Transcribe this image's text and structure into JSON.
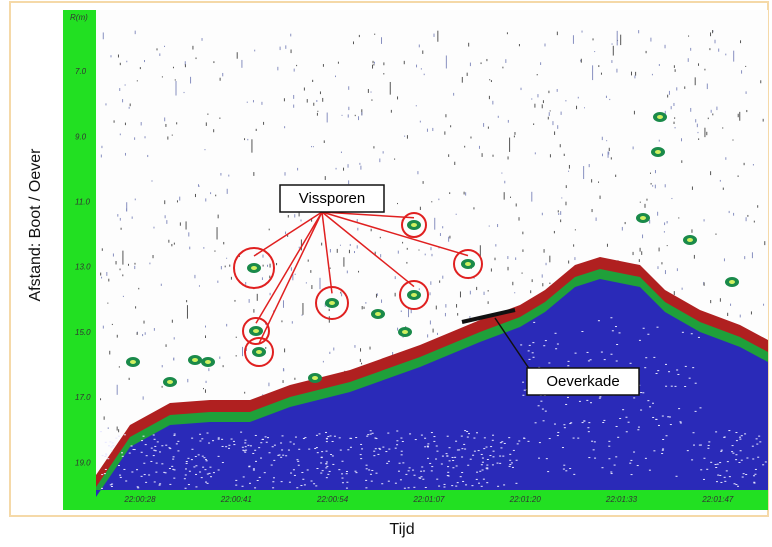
{
  "axis_label_y": "Afstand: Boot / Oever",
  "axis_label_x": "Tijd",
  "y_unit": "R(m)",
  "y_ticks": [
    "7.0",
    "9.0",
    "11.0",
    "13.0",
    "15.0",
    "17.0",
    "19.0"
  ],
  "x_ticks": [
    "22:00:28",
    "22:00:41",
    "22:00:54",
    "22:01:07",
    "22:01:20",
    "22:01:33",
    "22:01:47"
  ],
  "annotations": {
    "fish": "Vissporen",
    "quay": "Oeverkade"
  }
}
